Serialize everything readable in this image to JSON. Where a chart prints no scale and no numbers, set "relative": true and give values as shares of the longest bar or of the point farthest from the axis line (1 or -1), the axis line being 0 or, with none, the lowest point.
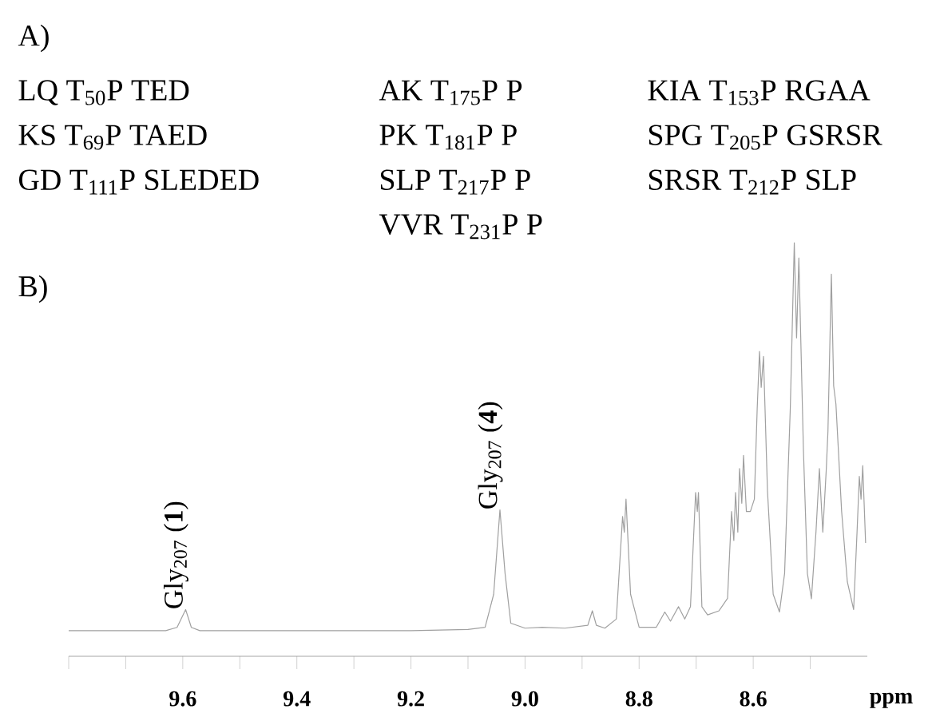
{
  "chart_data": {
    "type": "line",
    "relative": true,
    "xlabel": "ppm",
    "xlim": [
      9.8,
      8.4
    ],
    "xticks": [
      {
        "value": 9.8,
        "label": null
      },
      {
        "value": 9.7,
        "label": null
      },
      9.6,
      {
        "value": 9.5,
        "label": null
      },
      9.4,
      {
        "value": 9.3,
        "label": null
      },
      9.2,
      {
        "value": 9.1,
        "label": null
      },
      {
        "value": 9.0,
        "label": "9.0"
      },
      {
        "value": 8.9,
        "label": null
      },
      8.8,
      {
        "value": 8.7,
        "label": null
      },
      8.6,
      {
        "value": 8.5,
        "label": null
      }
    ],
    "x": [
      9.8,
      9.7,
      9.63,
      9.61,
      9.595,
      9.585,
      9.57,
      9.4,
      9.2,
      9.1,
      9.07,
      9.055,
      9.044,
      9.035,
      9.025,
      9.0,
      8.97,
      8.93,
      8.89,
      8.882,
      8.875,
      8.86,
      8.84,
      8.829,
      8.826,
      8.823,
      8.815,
      8.8,
      8.77,
      8.755,
      8.745,
      8.731,
      8.72,
      8.71,
      8.701,
      8.698,
      8.696,
      8.69,
      8.68,
      8.66,
      8.645,
      8.638,
      8.634,
      8.631,
      8.627,
      8.624,
      8.62,
      8.617,
      8.612,
      8.605,
      8.598,
      8.593,
      8.589,
      8.586,
      8.582,
      8.575,
      8.565,
      8.554,
      8.545,
      8.535,
      8.528,
      8.524,
      8.52,
      8.512,
      8.505,
      8.498,
      8.49,
      8.484,
      8.478,
      8.472,
      8.469,
      8.463,
      8.459,
      8.455,
      8.445,
      8.435,
      8.424,
      8.418,
      8.414,
      8.411,
      8.408,
      8.403
    ],
    "series": [
      {
        "color": "#a0a0a0",
        "values": [
          0.062,
          0.062,
          0.062,
          0.07,
          0.113,
          0.07,
          0.062,
          0.062,
          0.062,
          0.065,
          0.07,
          0.15,
          0.354,
          0.2,
          0.08,
          0.068,
          0.07,
          0.068,
          0.075,
          0.11,
          0.075,
          0.068,
          0.09,
          0.338,
          0.3,
          0.38,
          0.15,
          0.07,
          0.07,
          0.107,
          0.085,
          0.12,
          0.09,
          0.12,
          0.396,
          0.35,
          0.396,
          0.12,
          0.1,
          0.11,
          0.14,
          0.35,
          0.28,
          0.396,
          0.3,
          0.454,
          0.37,
          0.486,
          0.35,
          0.35,
          0.38,
          0.6,
          0.737,
          0.65,
          0.725,
          0.4,
          0.15,
          0.107,
          0.2,
          0.6,
          1,
          0.77,
          0.963,
          0.5,
          0.2,
          0.139,
          0.3,
          0.454,
          0.3,
          0.45,
          0.544,
          0.924,
          0.654,
          0.61,
          0.35,
          0.18,
          0.113,
          0.3,
          0.435,
          0.38,
          0.461,
          0.274
        ]
      }
    ],
    "annotations": [
      "A)",
      "LQ T$_{50}$P TED",
      "KS T$_{69}$P TAED",
      "GD T$_{111}$P SLEDED",
      "AK T$_{175}$P P",
      "PK T$_{181}$P P",
      "SLP T$_{217}$P P",
      "VVR T$_{231}$P P",
      "KIA T$_{153}$P RGAA",
      "SPG T$_{205}$P GSRSR",
      "SRSR T$_{212}$P SLP",
      "B)",
      {
        "text": "Gly$_{207}$ (**1**)",
        "x": 9.595,
        "y": 0.113
      },
      {
        "text": "Gly$_{207}$ (**4**)",
        "x": 9.044,
        "y": 0.354
      }
    ]
  }
}
